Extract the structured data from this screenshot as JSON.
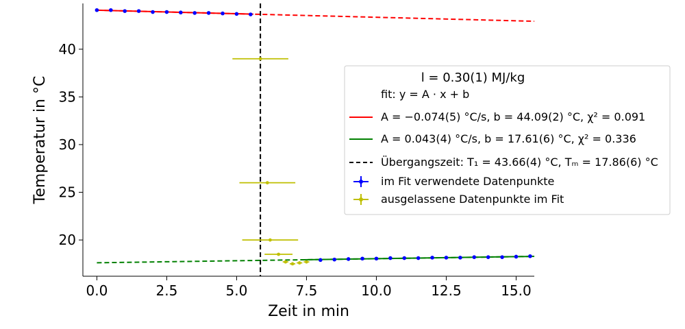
{
  "chart_data": {
    "type": "scatter",
    "xlabel": "Zeit in min",
    "ylabel": "Temperatur in °C",
    "xlim": [
      -0.5,
      15.65
    ],
    "ylim": [
      16.2,
      44.8
    ],
    "xticks": [
      0.0,
      2.5,
      5.0,
      7.5,
      10.0,
      12.5,
      15.0
    ],
    "xtick_labels": [
      "0.0",
      "2.5",
      "5.0",
      "7.5",
      "10.0",
      "12.5",
      "15.0"
    ],
    "yticks": [
      20,
      25,
      30,
      35,
      40
    ],
    "ytick_labels": [
      "20",
      "25",
      "30",
      "35",
      "40"
    ],
    "grid": false,
    "legend": {
      "placement": "right",
      "title": "l = 0.30(1) MJ/kg",
      "entries": [
        {
          "label": "fit: y = A · x + b",
          "style": "none"
        },
        {
          "label": "A = −0.074(5) °C/s, b = 44.09(2) °C, χ² = 0.091",
          "style": "line",
          "color": "#ff0000"
        },
        {
          "label": "A = 0.043(4) °C/s, b = 17.61(6) °C, χ² = 0.336",
          "style": "line",
          "color": "#008000"
        },
        {
          "label": "Übergangszeit: T₁ = 43.66(4) °C, Tₘ = 17.86(6) °C",
          "style": "dashed",
          "color": "#000000"
        },
        {
          "label": "im Fit verwendete Datenpunkte",
          "style": "errorbar",
          "color": "#0000ff"
        },
        {
          "label": "ausgelassene Datenpunkte im Fit",
          "style": "errorbar",
          "color": "#bfbf00"
        }
      ]
    },
    "series": [
      {
        "name": "im Fit verwendete Datenpunkte",
        "color": "#0000ff",
        "points": [
          {
            "x": 0.0,
            "y": 44.1
          },
          {
            "x": 0.5,
            "y": 44.1
          },
          {
            "x": 1.0,
            "y": 44.0
          },
          {
            "x": 1.5,
            "y": 44.0
          },
          {
            "x": 2.0,
            "y": 43.9
          },
          {
            "x": 2.5,
            "y": 43.9
          },
          {
            "x": 3.0,
            "y": 43.85
          },
          {
            "x": 3.5,
            "y": 43.8
          },
          {
            "x": 4.0,
            "y": 43.8
          },
          {
            "x": 4.5,
            "y": 43.75
          },
          {
            "x": 5.0,
            "y": 43.7
          },
          {
            "x": 5.5,
            "y": 43.65
          },
          {
            "x": 8.0,
            "y": 17.9
          },
          {
            "x": 8.5,
            "y": 17.95
          },
          {
            "x": 9.0,
            "y": 18.0
          },
          {
            "x": 9.5,
            "y": 18.05
          },
          {
            "x": 10.0,
            "y": 18.05
          },
          {
            "x": 10.5,
            "y": 18.1
          },
          {
            "x": 11.0,
            "y": 18.1
          },
          {
            "x": 11.5,
            "y": 18.1
          },
          {
            "x": 12.0,
            "y": 18.15
          },
          {
            "x": 12.5,
            "y": 18.15
          },
          {
            "x": 13.0,
            "y": 18.15
          },
          {
            "x": 13.5,
            "y": 18.2
          },
          {
            "x": 14.0,
            "y": 18.2
          },
          {
            "x": 14.5,
            "y": 18.2
          },
          {
            "x": 15.0,
            "y": 18.25
          },
          {
            "x": 15.5,
            "y": 18.3
          }
        ]
      },
      {
        "name": "ausgelassene Datenpunkte im Fit",
        "color": "#bfbf00",
        "points": [
          {
            "x": 5.85,
            "y": 39.0,
            "xerr": 1.0
          },
          {
            "x": 6.1,
            "y": 26.0,
            "xerr": 1.0
          },
          {
            "x": 6.2,
            "y": 20.0,
            "xerr": 1.0
          },
          {
            "x": 6.5,
            "y": 18.5,
            "xerr": 0.5
          },
          {
            "x": 6.75,
            "y": 17.7,
            "xerr": 0.1
          },
          {
            "x": 7.0,
            "y": 17.5,
            "xerr": 0.1
          },
          {
            "x": 7.25,
            "y": 17.6,
            "xerr": 0.1
          },
          {
            "x": 7.5,
            "y": 17.7,
            "xerr": 0.1
          }
        ]
      }
    ],
    "fit_lines": [
      {
        "color": "#ff0000",
        "x": [
          0.0,
          15.65
        ],
        "y": [
          44.09,
          42.93
        ],
        "solid_until": 5.6
      },
      {
        "color": "#008000",
        "x": [
          0.0,
          15.65
        ],
        "y": [
          17.61,
          18.28
        ],
        "solid_from": 7.4
      }
    ],
    "vlines": [
      {
        "x": 5.85,
        "color": "#000000",
        "style": "dashed"
      }
    ]
  }
}
